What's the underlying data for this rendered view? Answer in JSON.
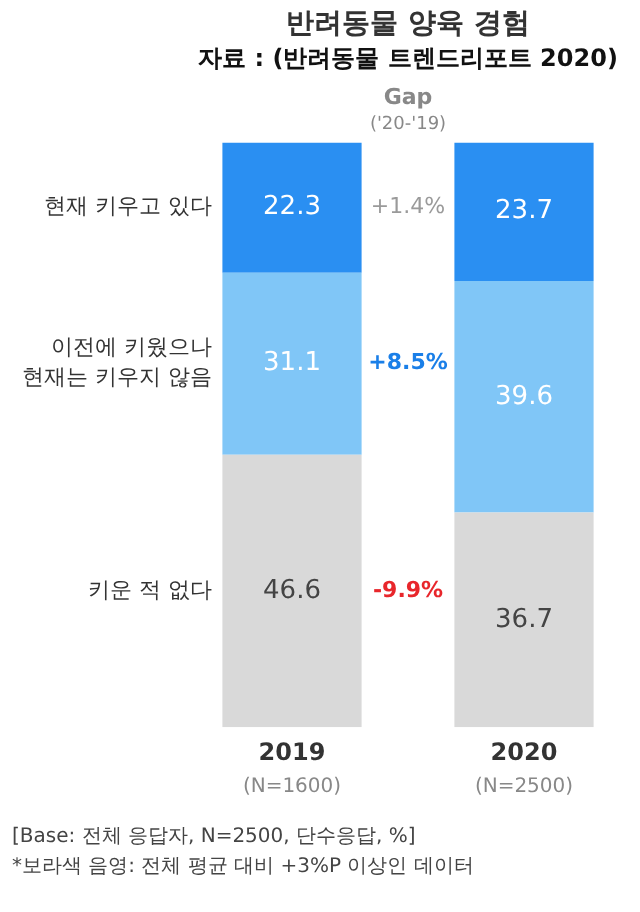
{
  "chart_data": {
    "type": "bar",
    "title": "반려동물 양육 경험",
    "subtitle": "자료 : (반려동물 트렌드리포트 2020)",
    "categories": [
      "2019",
      "2020"
    ],
    "stacked": true,
    "data_labels": true,
    "legend": false,
    "grid": false,
    "series": [
      {
        "name": "키운 적 없다",
        "color": "#d9d9d9",
        "values": [
          46.6,
          36.7
        ]
      },
      {
        "name": "이전에 키웠으나 현재는 키우지 않음",
        "color": "#80c6f7",
        "values": [
          31.1,
          39.6
        ]
      },
      {
        "name": "현재 키우고 있다",
        "color": "#2a8ff2",
        "values": [
          22.3,
          23.7
        ]
      }
    ],
    "annotations": [
      "Gap",
      "('20-'19)",
      "-9.9%",
      "+8.5%",
      "+1.4%",
      "(N=1600)",
      "(N=2500)",
      "[Base: 전체 응답자, N=2500, 단수응답, %]",
      "*보라색 음영: 전체 평균 대비 +3%P 이상인 데이터"
    ]
  }
}
